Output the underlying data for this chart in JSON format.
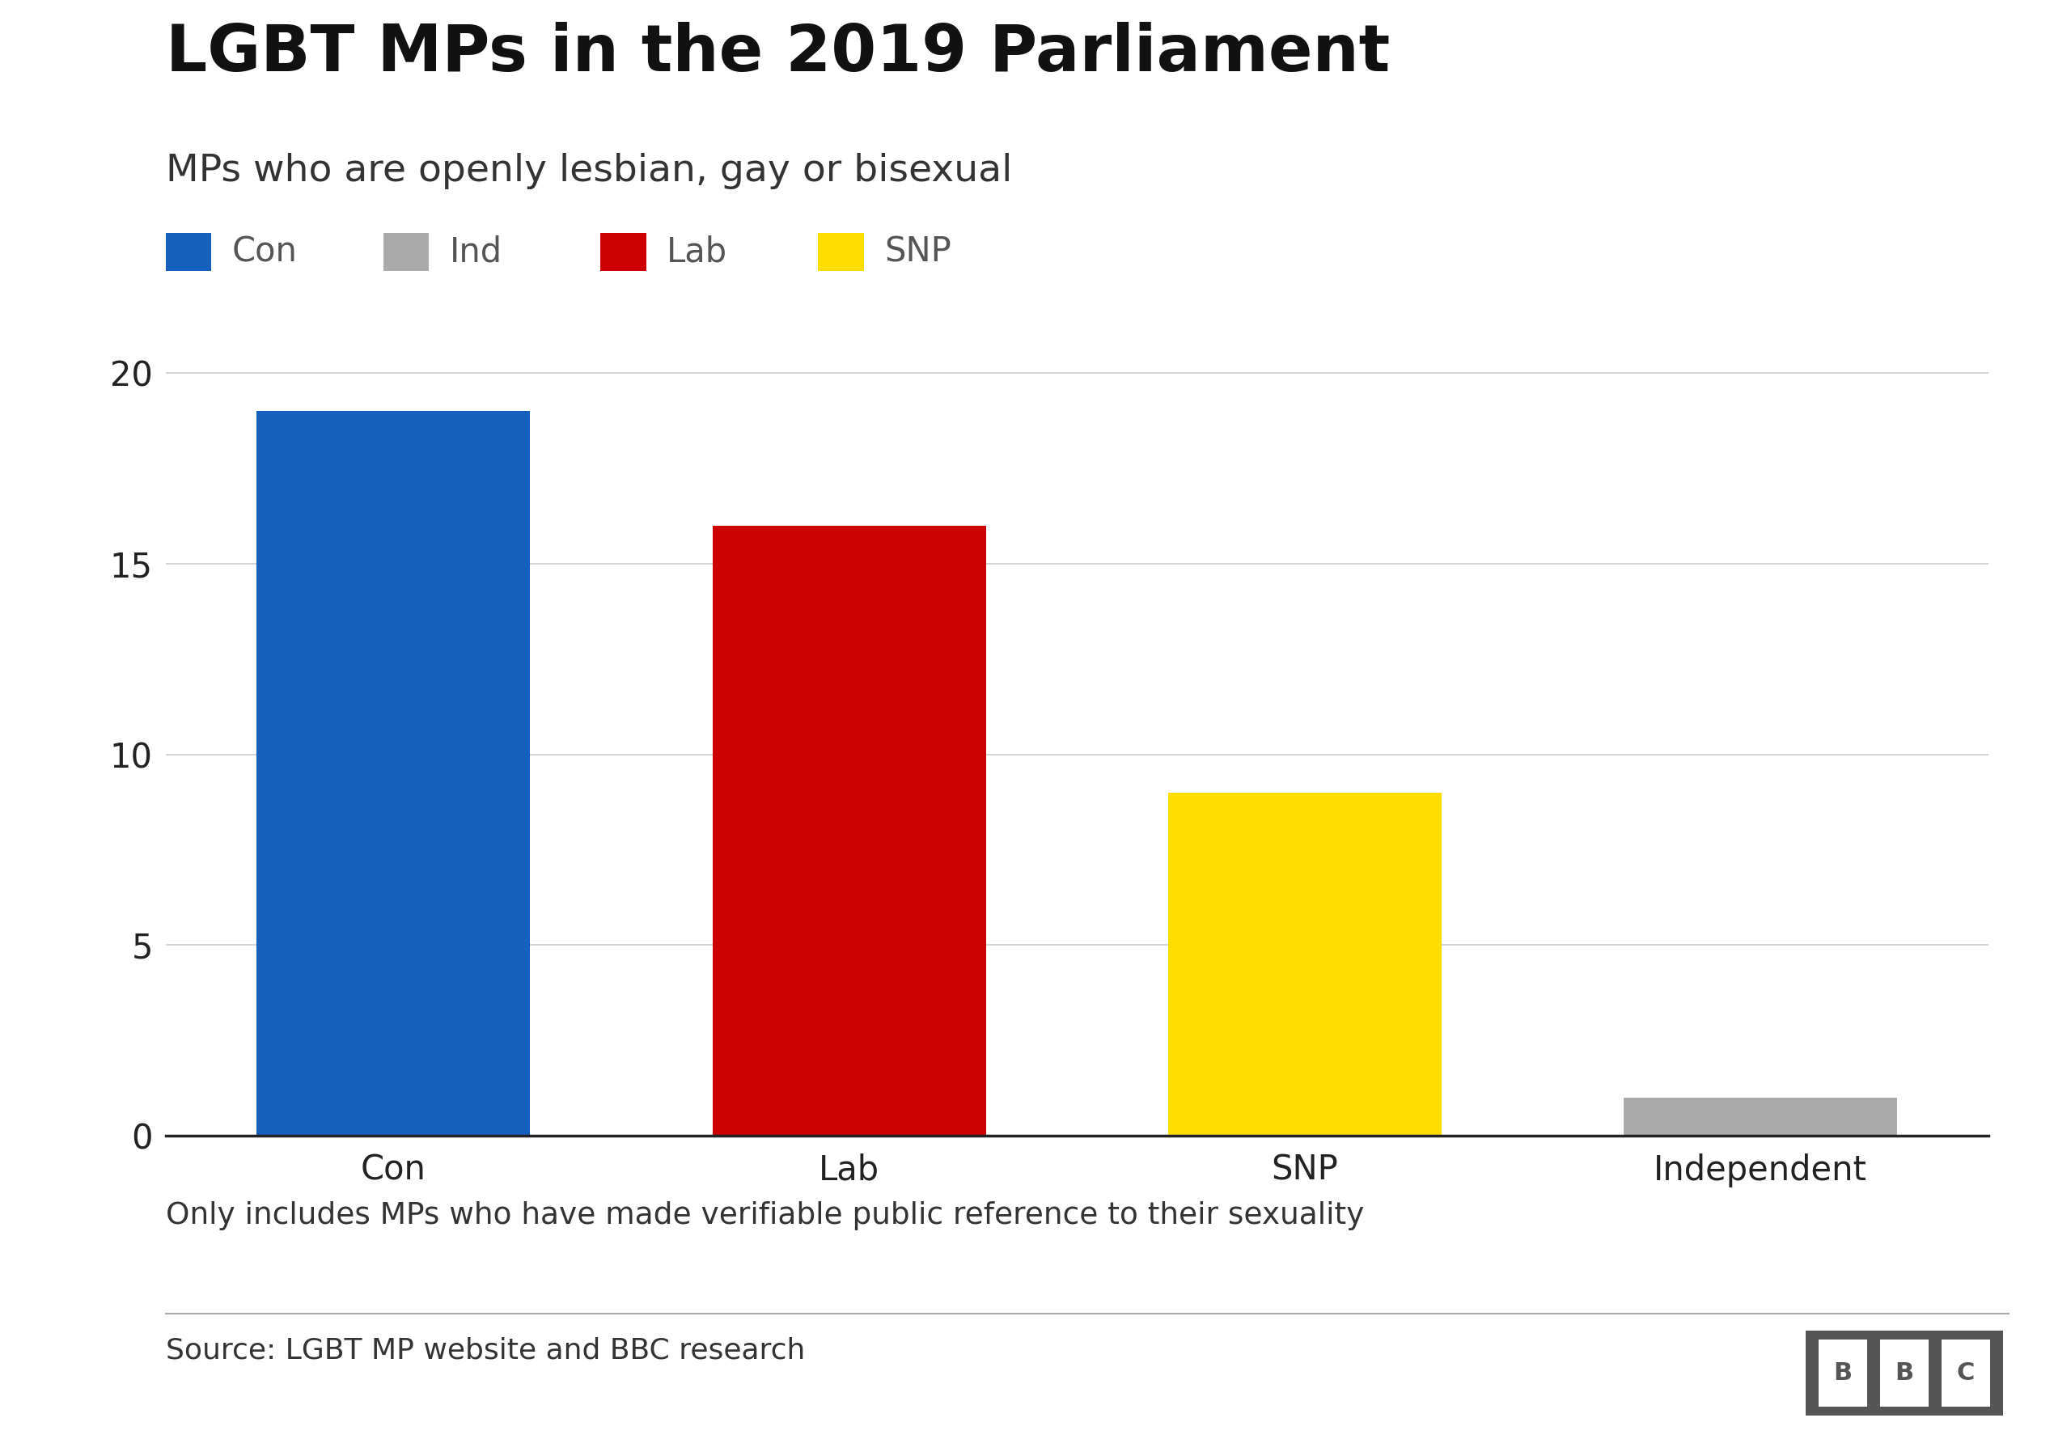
{
  "title": "LGBT MPs in the 2019 Parliament",
  "subtitle": "MPs who are openly lesbian, gay or bisexual",
  "categories": [
    "Con",
    "Lab",
    "SNP",
    "Independent"
  ],
  "values": [
    19,
    16,
    9,
    1
  ],
  "bar_colors": [
    "#1560BD",
    "#CC0000",
    "#FFDD00",
    "#AAAAAA"
  ],
  "legend_items": [
    {
      "label": "Con",
      "color": "#1560BD"
    },
    {
      "label": "Ind",
      "color": "#AAAAAA"
    },
    {
      "label": "Lab",
      "color": "#CC0000"
    },
    {
      "label": "SNP",
      "color": "#FFDD00"
    }
  ],
  "yticks": [
    0,
    5,
    10,
    15,
    20
  ],
  "ylim": [
    0,
    21
  ],
  "footnote": "Only includes MPs who have made verifiable public reference to their sexuality",
  "source": "Source: LGBT MP website and BBC research",
  "background_color": "#FFFFFF",
  "title_fontsize": 58,
  "subtitle_fontsize": 34,
  "tick_fontsize": 30,
  "legend_fontsize": 30,
  "footnote_fontsize": 27,
  "source_fontsize": 26
}
